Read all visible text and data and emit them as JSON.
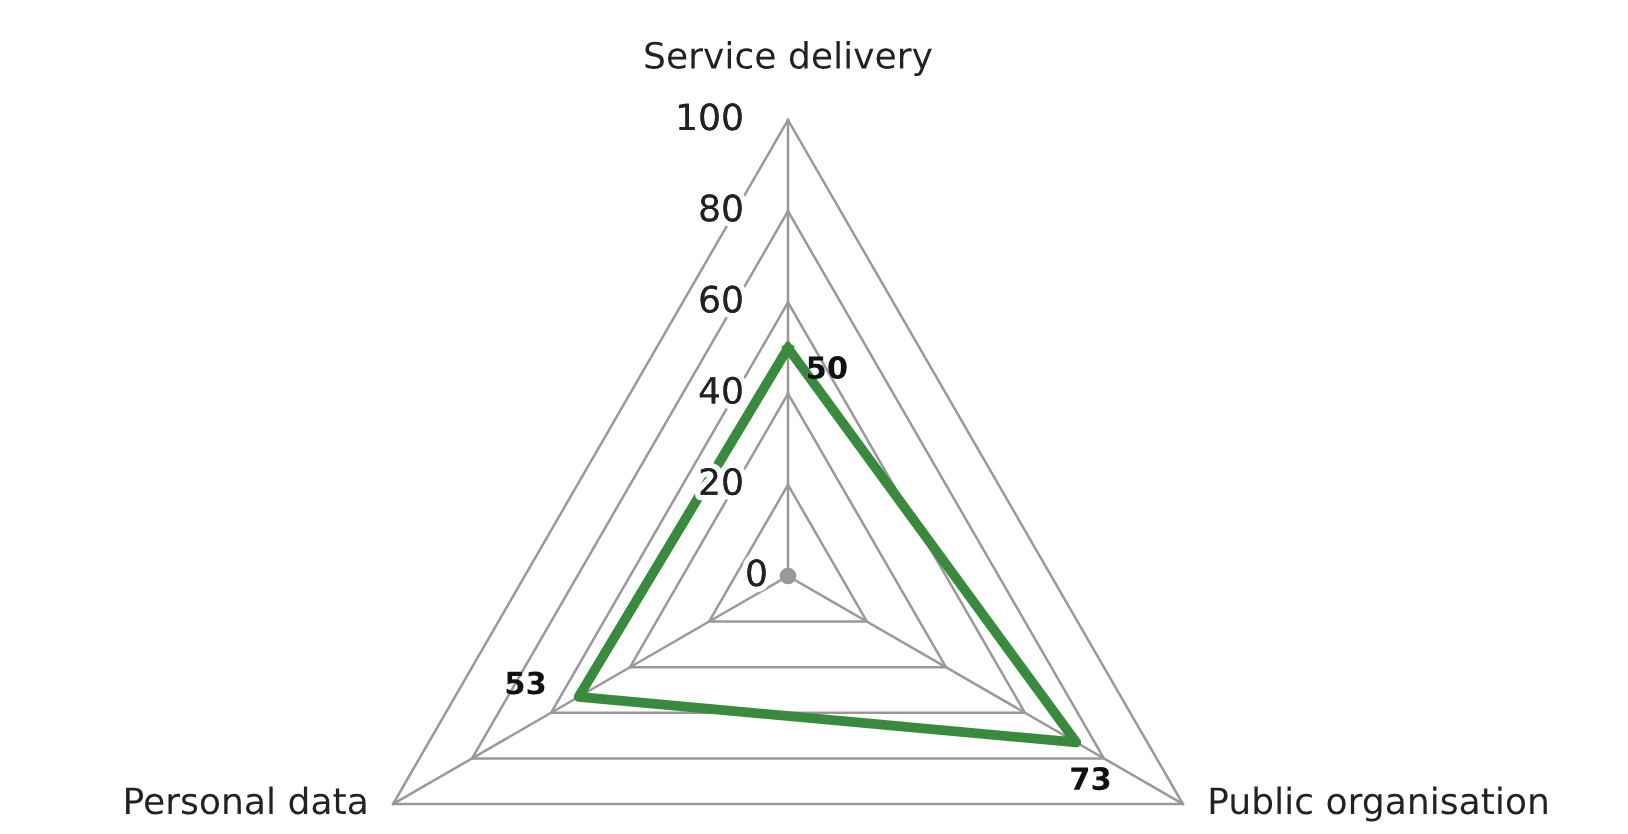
{
  "chart_data": {
    "type": "radar",
    "categories": [
      "Service delivery",
      "Public organisation",
      "Personal data"
    ],
    "series": [
      {
        "color": "#3a8a3e",
        "values": [
          50,
          73,
          53
        ]
      }
    ],
    "ylim": [
      0,
      100
    ],
    "yticks": [
      0,
      20,
      40,
      60,
      80,
      100
    ],
    "grid": true,
    "data_labels": true,
    "marker": "none"
  }
}
